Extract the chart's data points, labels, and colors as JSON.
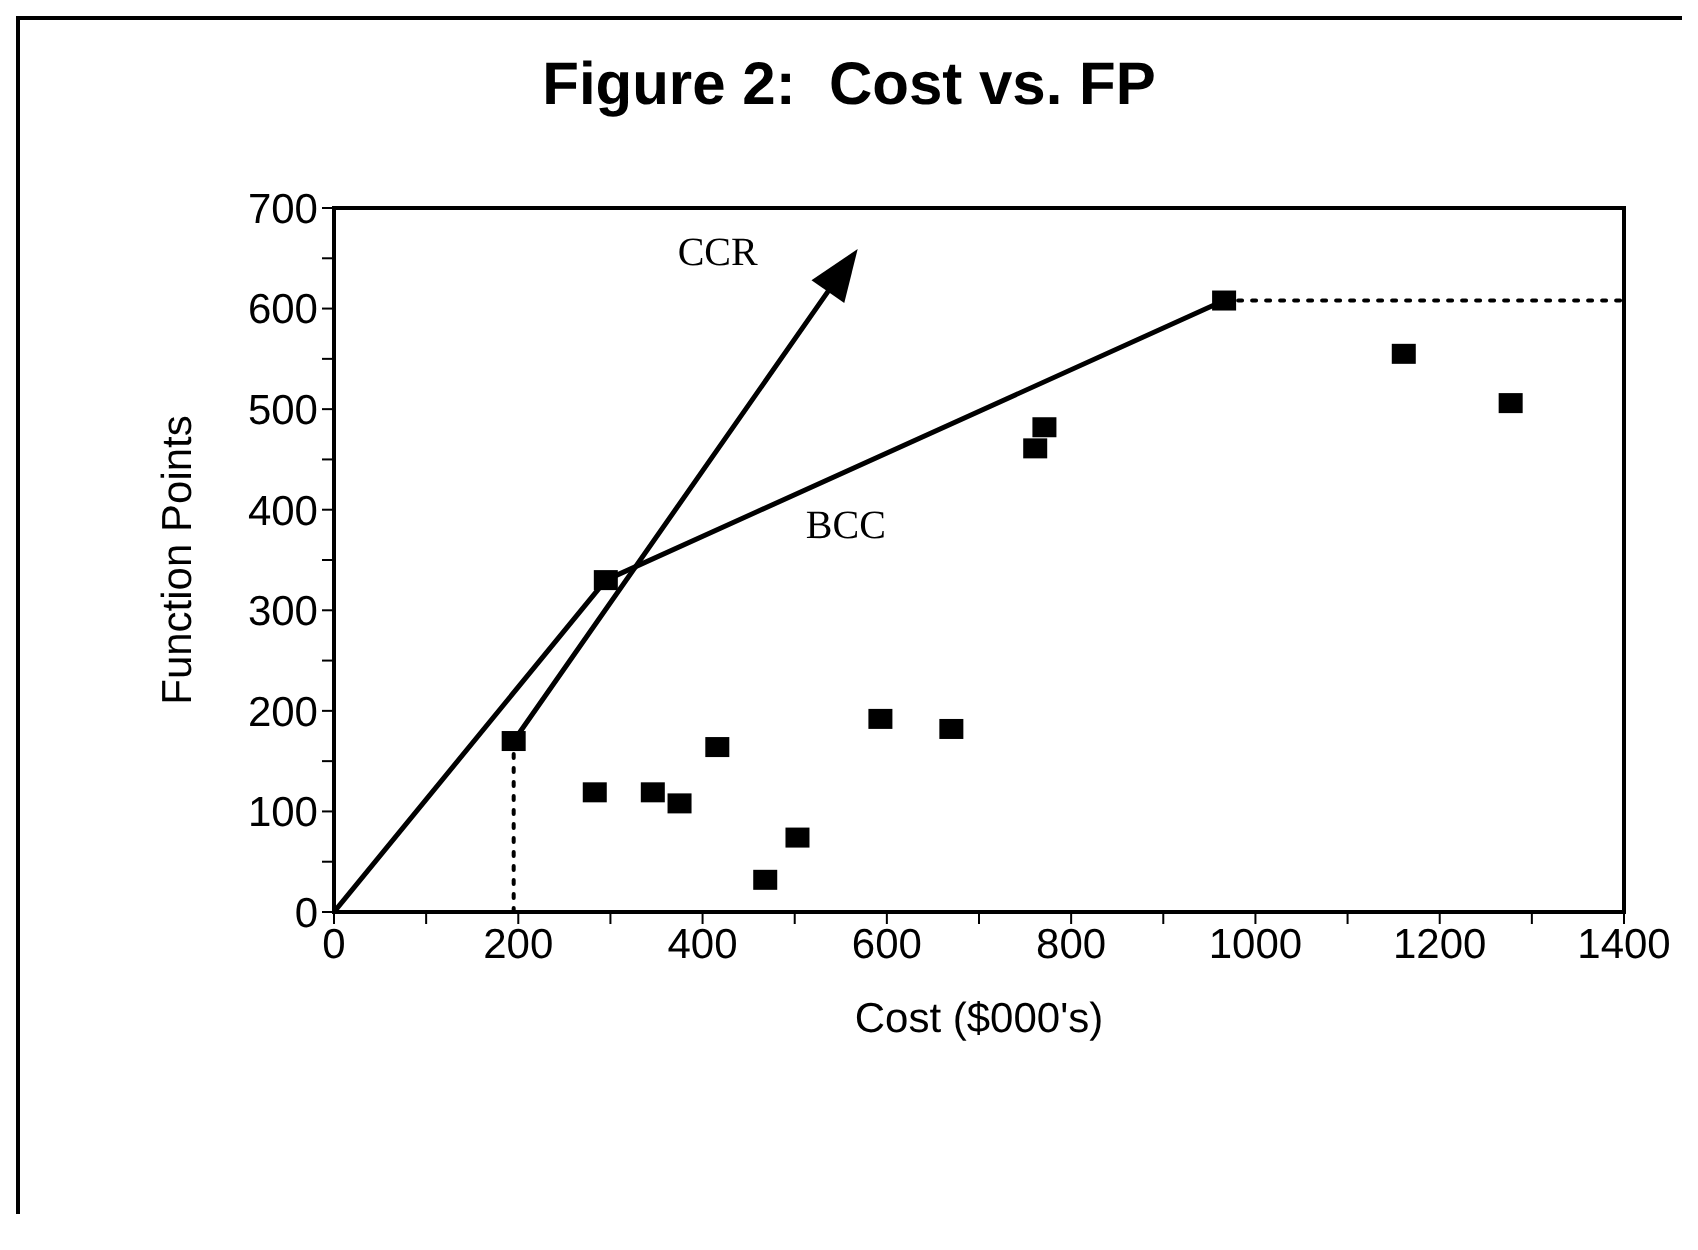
{
  "chart_data": {
    "type": "scatter",
    "title": "Figure 2:  Cost vs. FP",
    "xlabel": "Cost ($000's)",
    "ylabel": "Function Points",
    "xlim": [
      0,
      1400
    ],
    "ylim": [
      0,
      700
    ],
    "xticks": [
      0,
      {
        "value": 100,
        "label": null
      },
      200,
      {
        "value": 300,
        "label": null
      },
      400,
      {
        "value": 500,
        "label": null
      },
      600,
      {
        "value": 700,
        "label": null
      },
      800,
      {
        "value": 900,
        "label": null
      },
      1000,
      {
        "value": 1100,
        "label": null
      },
      1200,
      {
        "value": 1300,
        "label": null
      },
      1400
    ],
    "yticks": [
      0,
      {
        "value": 50,
        "label": null
      },
      100,
      {
        "value": 150,
        "label": null
      },
      200,
      {
        "value": 250,
        "label": null
      },
      300,
      {
        "value": 350,
        "label": null
      },
      400,
      {
        "value": 450,
        "label": null
      },
      500,
      {
        "value": 550,
        "label": null
      },
      600,
      {
        "value": 650,
        "label": null
      },
      700
    ],
    "annotations": [
      "CCR"
    ],
    "series": [
      {
        "type": "line",
        "name": "BCC",
        "color": "#000000",
        "marker": "none",
        "line_style": "solid",
        "x": [
          0,
          295,
          966
        ],
        "values": [
          0,
          330,
          608
        ]
      },
      {
        "type": "line",
        "color": "#000000",
        "marker": "none",
        "line_style": "dotted",
        "x": [
          195,
          195
        ],
        "values": [
          0,
          170
        ]
      },
      {
        "type": "line",
        "color": "#000000",
        "marker": "none",
        "line_style": "dotted",
        "x": [
          966,
          1400
        ],
        "values": [
          608,
          608
        ]
      },
      {
        "color": "#000000",
        "marker": "square",
        "x": [
          195,
          295,
          283,
          346,
          375,
          416,
          468,
          503,
          593,
          670,
          761,
          771,
          966,
          1161,
          1277
        ],
        "values": [
          170,
          330,
          119,
          119,
          108,
          164,
          32,
          74,
          192,
          182,
          461,
          482,
          608,
          555,
          506
        ]
      }
    ]
  }
}
